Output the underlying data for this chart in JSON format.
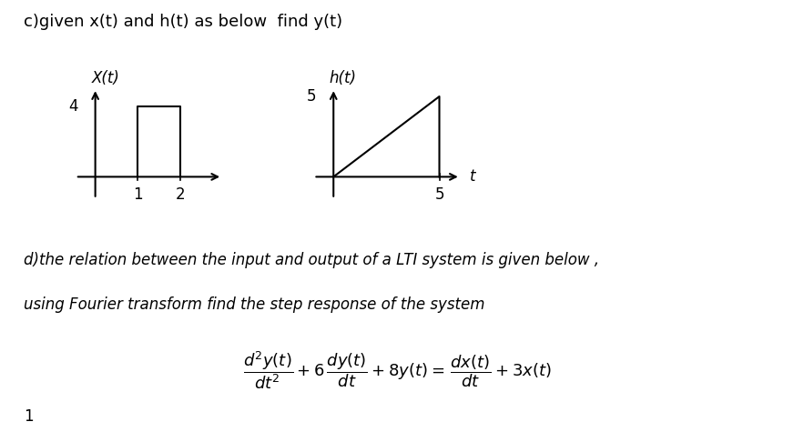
{
  "title_c": "c)given x(t) and h(t) as below  find y(t)",
  "xlabel_xt": "X(t)",
  "xlabel_ht": "h(t)",
  "label_t": "t",
  "label_4": "4",
  "label_5_y": "5",
  "label_1": "1",
  "label_2": "2",
  "label_5_t": "5",
  "text_d1": "d)the relation between the input and output of a LTI system is given below ,",
  "text_d2": "using Fourier transform find the step response of the system",
  "bg_color": "#ffffff",
  "text_color": "#000000",
  "font_size_title": 13,
  "font_size_label": 12,
  "font_size_tick": 12,
  "graph1_ox": 0.12,
  "graph1_oy": 0.6,
  "graph1_xw": 0.16,
  "graph1_yh": 0.2,
  "graph2_ox": 0.42,
  "graph2_oy": 0.6,
  "graph2_xw": 0.16,
  "graph2_yh": 0.2
}
